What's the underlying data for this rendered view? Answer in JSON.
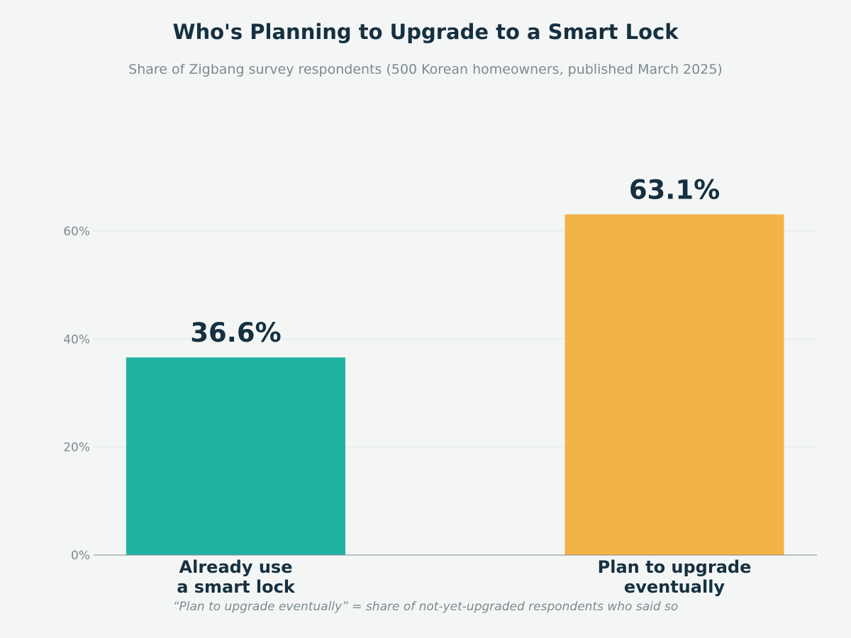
{
  "chart_data": {
    "type": "bar",
    "title": "Who's Planning to Upgrade to a Smart Lock",
    "subtitle": "Share of Zigbang survey respondents (500 Korean homeowners, published March 2025)",
    "categories": [
      [
        "Already use",
        "a smart lock"
      ],
      [
        "Plan to upgrade",
        "eventually"
      ]
    ],
    "values": [
      36.6,
      63.1
    ],
    "value_labels": [
      "36.6%",
      "63.1%"
    ],
    "colors": [
      "#20b3a1",
      "#f3b446"
    ],
    "ylim": [
      0,
      70
    ],
    "yticks": [
      0,
      20,
      40,
      60
    ],
    "ytick_labels": [
      "0%",
      "20%",
      "40%",
      "60%"
    ],
    "grid": true,
    "note": "“Plan to upgrade eventually” = share of not-yet-upgraded respondents who said so"
  }
}
